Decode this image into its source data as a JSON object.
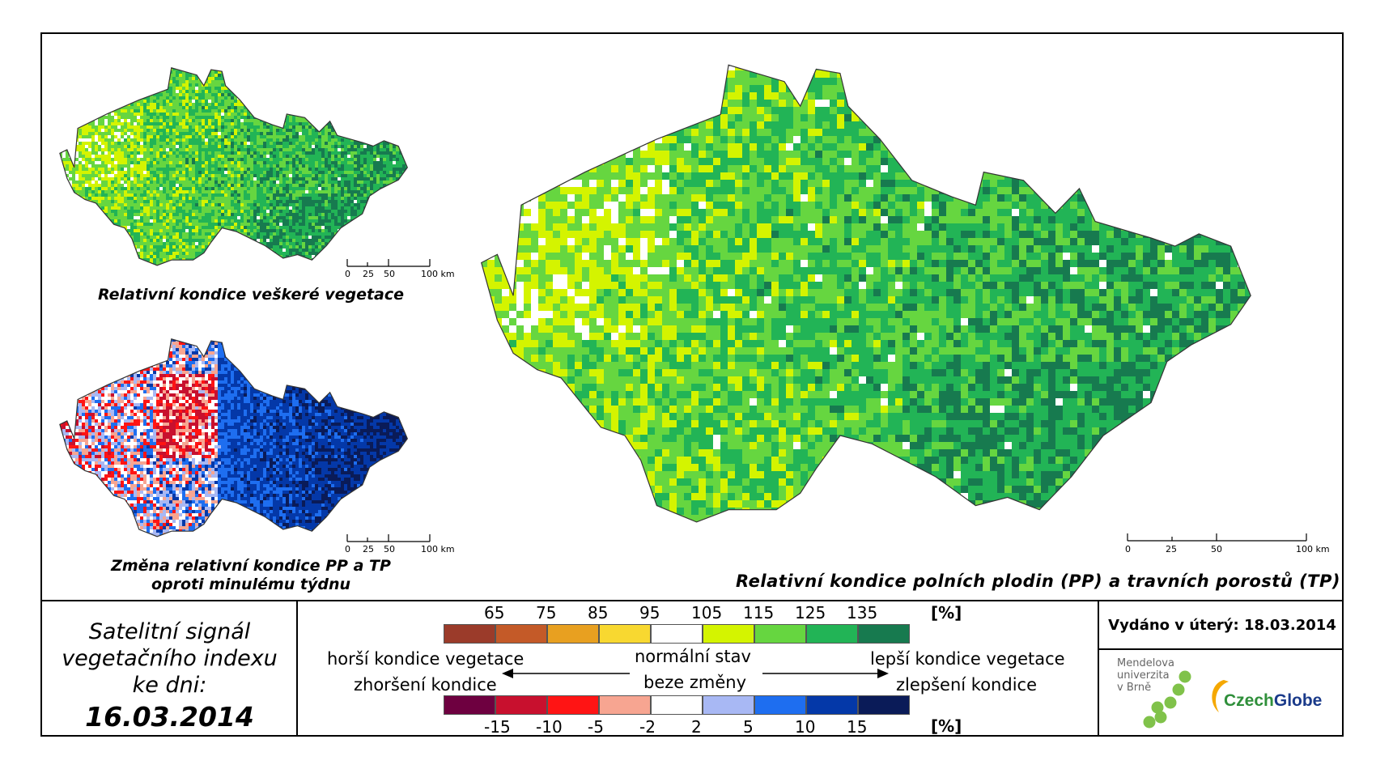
{
  "maps": {
    "top_left": {
      "caption": "Relativní kondice veškeré vegetace"
    },
    "bottom_left": {
      "caption_line1": "Změna relativní kondice PP a TP",
      "caption_line2": "oproti minulému týdnu"
    },
    "main": {
      "caption": "Relativní kondice polních plodin (PP) a travních porostů (TP)"
    }
  },
  "scalebars": {
    "small": {
      "labels": [
        "0",
        "25",
        "50",
        "100 km"
      ]
    },
    "large": {
      "labels": [
        "0",
        "25",
        "50",
        "100 km"
      ]
    }
  },
  "satellite": {
    "line1": "Satelitní signál",
    "line2": "vegetačního indexu",
    "line3": "ke dni:",
    "date": "16.03.2014"
  },
  "legend_condition": {
    "ticks": [
      "65",
      "75",
      "85",
      "95",
      "105",
      "115",
      "125",
      "135"
    ],
    "unit": "[%]",
    "colors": [
      "#9b3b2a",
      "#c45a28",
      "#e8a020",
      "#f8d830",
      "#ffffff",
      "#d4f400",
      "#66d640",
      "#22b456",
      "#177a4f"
    ]
  },
  "legend_change": {
    "ticks": [
      "-15",
      "-10",
      "-5",
      "-2",
      "2",
      "5",
      "10",
      "15"
    ],
    "unit": "[%]",
    "colors": [
      "#6e0040",
      "#c8102e",
      "#ff1414",
      "#f7a591",
      "#ffffff",
      "#a8b8f4",
      "#1e6ef0",
      "#0438a8",
      "#0a1b58"
    ]
  },
  "legend_labels": {
    "worse_vegetation": "horší kondice vegetace",
    "normal_state": "normální stav",
    "better_vegetation": "lepší kondice vegetace",
    "worsening": "zhoršení kondice",
    "no_change": "beze změny",
    "improvement": "zlepšení kondice"
  },
  "issued": {
    "text": "Vydáno v úterý: 18.03.2014"
  },
  "logos": {
    "mendel_line1": "Mendelova",
    "mendel_line2": "univerzita",
    "mendel_line3": "v Brně",
    "czechglobe": "CzechGlobe",
    "mendel_dot_color": "#80c24a",
    "czechglobe_green": "#2f8f3a",
    "czechglobe_blue": "#1a3a8a",
    "czechglobe_swoosh": "#f5a800"
  }
}
